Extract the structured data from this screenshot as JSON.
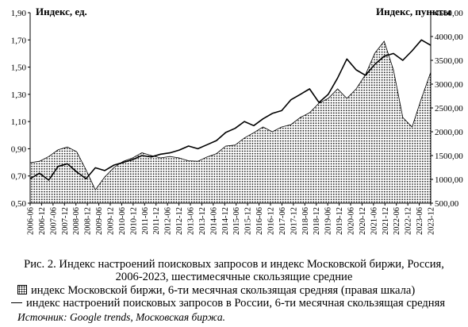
{
  "chart_data": {
    "type": "line",
    "left_axis_title": "Индекс, ед.",
    "right_axis_title": "Индекс, пункты",
    "left_ylim": [
      0.5,
      1.9
    ],
    "right_ylim": [
      500,
      4500
    ],
    "left_ticks": [
      "0,50",
      "0,70",
      "0,90",
      "1,10",
      "1,30",
      "1,50",
      "1,70",
      "1,90"
    ],
    "right_ticks": [
      "500,00",
      "1000,00",
      "1500,00",
      "2000,00",
      "2500,00",
      "3000,00",
      "3500,00",
      "4000,00",
      "4500,00"
    ],
    "x_ticks": [
      "2006-06",
      "2006-12",
      "2007-06",
      "2007-12",
      "2008-06",
      "2008-12",
      "2009-06",
      "2009-12",
      "2010-06",
      "2010-12",
      "2011-06",
      "2011-12",
      "2012-06",
      "2012-12",
      "2013-06",
      "2013-12",
      "2014-06",
      "2014-12",
      "2015-06",
      "2015-12",
      "2016-06",
      "2016-12",
      "2017-06",
      "2017-12",
      "2018-06",
      "2018-12",
      "2019-06",
      "2019-12",
      "2020-06",
      "2020-12",
      "2021-06",
      "2021-12",
      "2022-06",
      "2022-12",
      "2023-06",
      "2023-12"
    ],
    "grid": false,
    "series": [
      {
        "name": "индекс Московской биржи, 6-ти месячная скользящая средняя (правая шкала)",
        "type": "area",
        "axis": "right",
        "fill": "dotted",
        "values": [
          1350,
          1380,
          1480,
          1620,
          1680,
          1580,
          1200,
          780,
          1050,
          1250,
          1380,
          1450,
          1560,
          1500,
          1450,
          1480,
          1450,
          1390,
          1380,
          1470,
          1540,
          1700,
          1720,
          1870,
          1980,
          2100,
          2000,
          2100,
          2150,
          2300,
          2400,
          2600,
          2700,
          2900,
          2700,
          2900,
          3200,
          3650,
          3900,
          3300,
          2300,
          2100,
          2700,
          3250
        ]
      },
      {
        "name": "индекс настроений поисковых запросов в России, 6-ти месячная скользящая средняя",
        "type": "line",
        "axis": "left",
        "values": [
          0.68,
          0.72,
          0.67,
          0.77,
          0.79,
          0.73,
          0.68,
          0.76,
          0.74,
          0.78,
          0.8,
          0.82,
          0.85,
          0.84,
          0.86,
          0.87,
          0.89,
          0.92,
          0.9,
          0.93,
          0.96,
          1.02,
          1.05,
          1.1,
          1.07,
          1.12,
          1.16,
          1.18,
          1.26,
          1.3,
          1.34,
          1.24,
          1.3,
          1.42,
          1.56,
          1.48,
          1.44,
          1.52,
          1.58,
          1.6,
          1.55,
          1.62,
          1.7,
          1.66
        ]
      }
    ]
  },
  "caption": {
    "line1": "Рис. 2. Индекс настроений поисковых запросов и индекс Московской биржи, Россия,",
    "line2": "2006-2023, шестимесячные скользящие средние"
  },
  "legend": {
    "area_label": "индекс Московской биржи, 6-ти месячная скользящая средняя (правая шкала)",
    "line_label": "индекс настроений поисковых запросов в России, 6-ти месячная скользящая средняя"
  },
  "source": "Источник: Google trends, Московская биржа."
}
